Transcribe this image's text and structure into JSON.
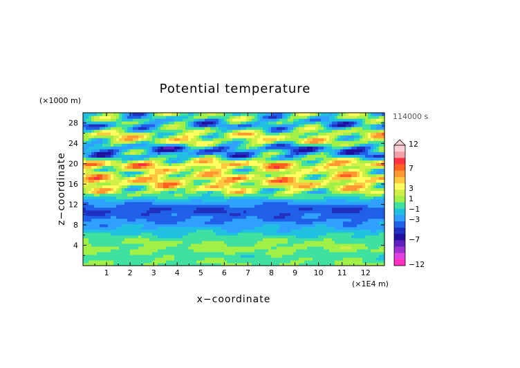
{
  "chart_data": {
    "type": "heatmap",
    "title": "Potential temperature",
    "xlabel": "x−coordinate",
    "ylabel": "z−coordinate",
    "x_unit": "(×1E4 m)",
    "y_unit": "(×1000 m)",
    "time_label": "114000 s",
    "xlim": [
      0,
      12.8
    ],
    "ylim": [
      0,
      30
    ],
    "x_ticks": [
      "1",
      "2",
      "3",
      "4",
      "5",
      "6",
      "7",
      "8",
      "9",
      "10",
      "11",
      "12"
    ],
    "y_ticks": [
      "4",
      "8",
      "12",
      "16",
      "20",
      "24",
      "28"
    ],
    "colorbar": {
      "labels": [
        "12",
        "7",
        "3",
        "1",
        "−1",
        "−3",
        "−7",
        "−12"
      ],
      "colors": [
        "#ffd0d8",
        "#f4a0a8",
        "#ff3040",
        "#ff6020",
        "#ff9830",
        "#ffc840",
        "#ffff60",
        "#d0f048",
        "#a0f048",
        "#40e0a0",
        "#20c0e0",
        "#30a0ff",
        "#2060e8",
        "#2030c0",
        "#2010a0",
        "#6020c0",
        "#a030d0",
        "#e040e0",
        "#ff30c0"
      ]
    },
    "bands_z_to_value": [
      {
        "z": 0.5,
        "value": 0.5
      },
      {
        "z": 2.0,
        "value": 0.0
      },
      {
        "z": 3.5,
        "value": 1.0
      },
      {
        "z": 5.0,
        "value": 0.5
      },
      {
        "z": 6.5,
        "value": -1.0
      },
      {
        "z": 8.0,
        "value": -2.5
      },
      {
        "z": 9.5,
        "value": -3.5
      },
      {
        "z": 11.0,
        "value": -4.5
      },
      {
        "z": 12.5,
        "value": -2.5
      },
      {
        "z": 14.0,
        "value": 0.5
      },
      {
        "z": 15.5,
        "value": 3.0
      },
      {
        "z": 17.0,
        "value": 4.0
      },
      {
        "z": 18.5,
        "value": 2.0
      },
      {
        "z": 20.0,
        "value": 4.5
      },
      {
        "z": 21.5,
        "value": -1.5
      },
      {
        "z": 23.0,
        "value": -3.5
      },
      {
        "z": 24.5,
        "value": 2.5
      },
      {
        "z": 26.0,
        "value": 2.0
      },
      {
        "z": 27.5,
        "value": -2.0
      },
      {
        "z": 29.5,
        "value": 0.0
      }
    ]
  }
}
